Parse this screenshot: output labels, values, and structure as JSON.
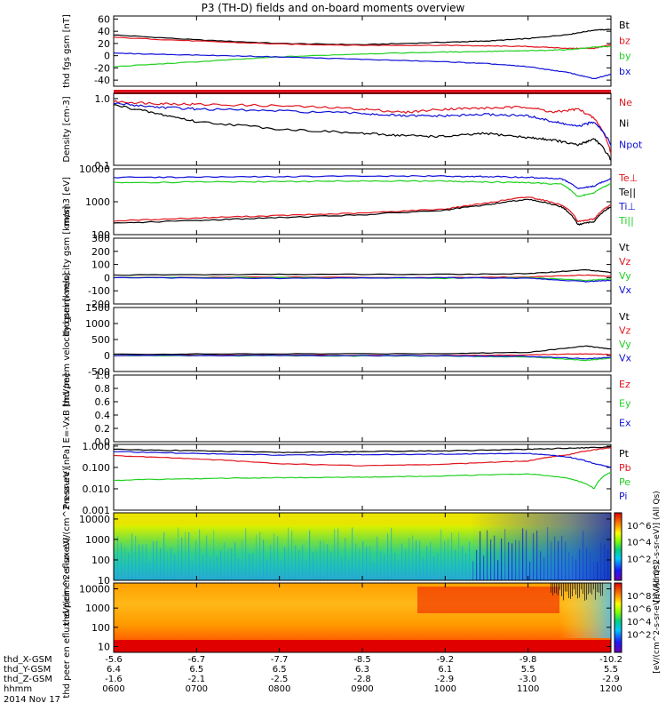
{
  "title": "P3 (TH-D) fields and on-board moments overview",
  "colors": {
    "black": "#000000",
    "red": "#e0141e",
    "green": "#20d020",
    "blue": "#1010d8"
  },
  "time_axis": {
    "ticks": [
      "0600",
      "0700",
      "0800",
      "0900",
      "1000",
      "1100",
      "1200"
    ],
    "range": [
      6.0,
      12.0
    ],
    "ephemeris": [
      {
        "label": "thd_X-GSM",
        "values": [
          "-5.6",
          "-6.7",
          "-7.7",
          "-8.5",
          "-9.2",
          "-9.8",
          "-10.2"
        ]
      },
      {
        "label": "thd_Y-GSM",
        "values": [
          "6.4",
          "6.5",
          "6.5",
          "6.3",
          "6.1",
          "5.5",
          "5.5"
        ]
      },
      {
        "label": "thd_Z-GSM",
        "values": [
          "-1.6",
          "-2.1",
          "-2.5",
          "-2.8",
          "-2.9",
          "-3.0",
          "-2.9"
        ]
      },
      {
        "label": "hhmm",
        "values": [
          "0600",
          "0700",
          "0800",
          "0900",
          "1000",
          "1100",
          "1200"
        ]
      }
    ],
    "date": "2014 Nov 17"
  },
  "chart_data": [
    {
      "type": "line",
      "ylabel": "thd fgs gsm [nT]",
      "ylim": [
        -50,
        65
      ],
      "yticks": [
        "60",
        "40",
        "20",
        "0",
        "-20",
        "-40"
      ],
      "series": [
        {
          "name": "Bt",
          "color": "black",
          "x": [
            6.0,
            7.0,
            8.0,
            9.0,
            10.0,
            10.5,
            11.0,
            11.5,
            11.8,
            12.0
          ],
          "y": [
            34,
            26,
            20,
            18,
            22,
            24,
            28,
            35,
            42,
            43
          ]
        },
        {
          "name": "bz",
          "color": "red",
          "x": [
            6.0,
            7.0,
            8.0,
            9.0,
            10.0,
            10.5,
            11.0,
            11.5,
            11.8,
            12.0
          ],
          "y": [
            30,
            24,
            19,
            17,
            17,
            16,
            15,
            12,
            12,
            18
          ]
        },
        {
          "name": "by",
          "color": "green",
          "x": [
            6.0,
            7.0,
            8.0,
            9.0,
            10.0,
            10.5,
            11.0,
            11.5,
            11.8,
            12.0
          ],
          "y": [
            -18,
            -10,
            -2,
            3,
            6,
            7,
            8,
            10,
            14,
            15
          ]
        },
        {
          "name": "bx",
          "color": "blue",
          "x": [
            6.0,
            7.0,
            8.0,
            9.0,
            10.0,
            10.5,
            11.0,
            11.5,
            11.8,
            12.0
          ],
          "y": [
            4,
            1,
            -2,
            -6,
            -10,
            -13,
            -18,
            -28,
            -38,
            -30
          ]
        }
      ]
    },
    {
      "type": "line",
      "ylabel": "Density [cm-3]",
      "scale": "log",
      "ylim": [
        0.1,
        1.2
      ],
      "yticks": [
        "1.0",
        "0.1"
      ],
      "series": [
        {
          "name": "Ne",
          "color": "red",
          "x": [
            6.0,
            6.5,
            7.0,
            8.0,
            9.0,
            9.5,
            10.0,
            10.5,
            11.0,
            11.3,
            11.6,
            11.8,
            12.0
          ],
          "y": [
            0.9,
            0.85,
            0.82,
            0.78,
            0.7,
            0.62,
            0.7,
            0.72,
            0.75,
            0.62,
            0.7,
            0.5,
            0.15
          ]
        },
        {
          "name": "Ni",
          "color": "black",
          "x": [
            6.0,
            6.5,
            7.0,
            8.0,
            9.0,
            9.5,
            10.0,
            10.5,
            11.0,
            11.3,
            11.6,
            11.8,
            12.0
          ],
          "y": [
            0.8,
            0.6,
            0.45,
            0.35,
            0.3,
            0.28,
            0.27,
            0.3,
            0.26,
            0.24,
            0.2,
            0.25,
            0.12
          ]
        },
        {
          "name": "Npot",
          "color": "blue",
          "x": [
            6.0,
            6.5,
            7.0,
            8.0,
            9.0,
            9.5,
            10.0,
            10.5,
            11.0,
            11.3,
            11.6,
            11.8,
            12.0
          ],
          "y": [
            0.85,
            0.75,
            0.7,
            0.65,
            0.6,
            0.55,
            0.55,
            0.58,
            0.55,
            0.45,
            0.38,
            0.45,
            0.2
          ]
        }
      ]
    },
    {
      "type": "line",
      "ylabel": "mom3 [eV]",
      "scale": "log",
      "ylim": [
        100,
        10000
      ],
      "yticks": [
        "10000",
        "1000",
        "100"
      ],
      "series": [
        {
          "name": "Te⊥",
          "color": "red",
          "x": [
            6.0,
            7.0,
            8.0,
            9.0,
            10.0,
            10.5,
            11.0,
            11.4,
            11.6,
            11.8,
            12.0
          ],
          "y": [
            260,
            320,
            380,
            450,
            600,
            900,
            1400,
            800,
            250,
            300,
            800
          ]
        },
        {
          "name": "Te||",
          "color": "black",
          "x": [
            6.0,
            7.0,
            8.0,
            9.0,
            10.0,
            10.5,
            11.0,
            11.4,
            11.6,
            11.8,
            12.0
          ],
          "y": [
            220,
            270,
            330,
            400,
            550,
            800,
            1200,
            700,
            200,
            250,
            700
          ]
        },
        {
          "name": "Ti⊥",
          "color": "blue",
          "x": [
            6.0,
            7.0,
            8.0,
            9.0,
            10.0,
            10.5,
            11.0,
            11.4,
            11.6,
            11.8,
            12.0
          ],
          "y": [
            5500,
            5600,
            5800,
            6000,
            6000,
            5800,
            5500,
            5000,
            2500,
            3000,
            5000
          ]
        },
        {
          "name": "Ti||",
          "color": "green",
          "x": [
            6.0,
            7.0,
            8.0,
            9.0,
            10.0,
            10.5,
            11.0,
            11.4,
            11.6,
            11.8,
            12.0
          ],
          "y": [
            3800,
            4000,
            4100,
            4300,
            4200,
            4000,
            3800,
            3400,
            1400,
            1900,
            3500
          ]
        }
      ]
    },
    {
      "type": "line",
      "ylabel": "thd peim velocity gsm [km/s]",
      "ylim": [
        -200,
        300
      ],
      "yticks": [
        "300",
        "200",
        "100",
        "0",
        "-100",
        "-200"
      ],
      "series": [
        {
          "name": "Vt",
          "color": "black",
          "x": [
            6.0,
            8.0,
            10.0,
            11.0,
            11.7,
            12.0
          ],
          "y": [
            20,
            25,
            25,
            30,
            60,
            40
          ]
        },
        {
          "name": "Vz",
          "color": "red",
          "x": [
            6.0,
            8.0,
            10.0,
            11.0,
            11.7,
            12.0
          ],
          "y": [
            0,
            5,
            0,
            5,
            20,
            10
          ]
        },
        {
          "name": "Vy",
          "color": "green",
          "x": [
            6.0,
            8.0,
            10.0,
            11.0,
            11.7,
            12.0
          ],
          "y": [
            0,
            0,
            -5,
            0,
            -20,
            -10
          ]
        },
        {
          "name": "Vx",
          "color": "blue",
          "x": [
            6.0,
            8.0,
            10.0,
            11.0,
            11.7,
            12.0
          ],
          "y": [
            0,
            -5,
            0,
            -5,
            -30,
            -20
          ]
        }
      ]
    },
    {
      "type": "line",
      "ylabel": "thd peem velocity gsm [km/s]",
      "ylim": [
        -500,
        1500
      ],
      "yticks": [
        "1500",
        "1000",
        "500",
        "0",
        "-500"
      ],
      "series": [
        {
          "name": "Vt",
          "color": "black",
          "x": [
            6.0,
            8.0,
            10.0,
            11.0,
            11.7,
            12.0
          ],
          "y": [
            40,
            50,
            60,
            100,
            300,
            200
          ]
        },
        {
          "name": "Vz",
          "color": "red",
          "x": [
            6.0,
            8.0,
            10.0,
            11.0,
            11.7,
            12.0
          ],
          "y": [
            0,
            10,
            0,
            20,
            50,
            30
          ]
        },
        {
          "name": "Vy",
          "color": "green",
          "x": [
            6.0,
            8.0,
            10.0,
            11.0,
            11.7,
            12.0
          ],
          "y": [
            0,
            -10,
            -20,
            -40,
            -150,
            -80
          ]
        },
        {
          "name": "Vx",
          "color": "blue",
          "x": [
            6.0,
            8.0,
            10.0,
            11.0,
            11.7,
            12.0
          ],
          "y": [
            0,
            0,
            -10,
            -30,
            -100,
            -60
          ]
        }
      ]
    },
    {
      "type": "line",
      "ylabel": "E=-VxB [mV/m]",
      "ylim": [
        0,
        1
      ],
      "yticks": [
        "1.0",
        "0.8",
        "0.6",
        "0.4",
        "0.2",
        "0.0"
      ],
      "series": [
        {
          "name": "Ez",
          "color": "red",
          "x": [],
          "y": []
        },
        {
          "name": "Ey",
          "color": "green",
          "x": [],
          "y": []
        },
        {
          "name": "Ex",
          "color": "blue",
          "x": [],
          "y": []
        }
      ]
    },
    {
      "type": "line",
      "ylabel": "Pressure [nPa]",
      "scale": "log",
      "ylim": [
        0.001,
        1.2
      ],
      "yticks": [
        "1.000",
        "0.100",
        "0.010",
        "0.001"
      ],
      "series": [
        {
          "name": "Pt",
          "color": "black",
          "x": [
            6.0,
            7.0,
            8.0,
            9.0,
            10.0,
            11.0,
            11.5,
            12.0
          ],
          "y": [
            0.7,
            0.6,
            0.5,
            0.55,
            0.6,
            0.7,
            0.8,
            0.9
          ]
        },
        {
          "name": "Pb",
          "color": "red",
          "x": [
            6.0,
            7.0,
            8.0,
            9.0,
            10.0,
            11.0,
            11.5,
            12.0
          ],
          "y": [
            0.35,
            0.25,
            0.15,
            0.12,
            0.14,
            0.2,
            0.4,
            0.85
          ]
        },
        {
          "name": "Pe",
          "color": "green",
          "x": [
            6.0,
            7.0,
            8.0,
            9.0,
            10.0,
            11.0,
            11.5,
            11.8,
            12.0
          ],
          "y": [
            0.025,
            0.03,
            0.033,
            0.035,
            0.04,
            0.05,
            0.03,
            0.01,
            0.06
          ]
        },
        {
          "name": "Pi",
          "color": "blue",
          "x": [
            6.0,
            7.0,
            8.0,
            9.0,
            10.0,
            11.0,
            11.5,
            11.8,
            12.0
          ],
          "y": [
            0.55,
            0.45,
            0.38,
            0.4,
            0.42,
            0.45,
            0.3,
            0.15,
            0.1
          ]
        }
      ]
    },
    {
      "type": "heatmap",
      "ylabel": "thd peir en eflux eV/(cm^2-s-sr-eV)",
      "scale": "log",
      "ylim": [
        10,
        20000
      ],
      "yticks": [
        "10000",
        "1000",
        "100",
        "10"
      ],
      "colorbar": {
        "labels": [
          "10^6",
          "10^4",
          "10^2"
        ],
        "title": "[eV/(cm^2-s-sr-eV)] (All Qs)"
      }
    },
    {
      "type": "heatmap",
      "ylabel": "thd peer en eflux eV/(cm^2-s-sr-eV)",
      "scale": "log",
      "ylim": [
        5,
        20000
      ],
      "yticks": [
        "10000",
        "1000",
        "100",
        "10"
      ],
      "colorbar": {
        "labels": [
          "10^8",
          "10^6",
          "10^4",
          "10^2"
        ],
        "title": "[eV/(cm^2-s-sr-eV)] (All Qs)"
      }
    }
  ]
}
